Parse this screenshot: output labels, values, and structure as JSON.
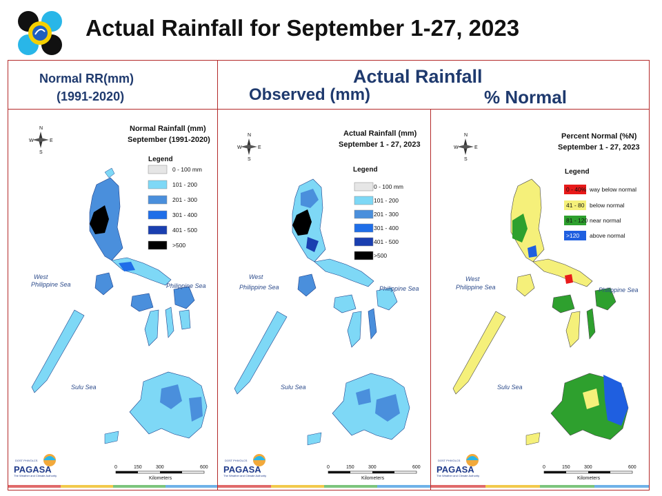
{
  "header": {
    "title": "Actual Rainfall for September 1-27, 2023",
    "normal_label_1": "Normal RR(mm)",
    "normal_label_2": "(1991-2020)",
    "actual_label": "Actual Rainfall",
    "observed_label": "Observed (mm)",
    "percent_label": "% Normal"
  },
  "colors": {
    "frame": "#b32828",
    "header_text": "#1f3a6e",
    "rain_0_100": "#e6e6e6",
    "rain_101_200": "#7ed8f6",
    "rain_201_300": "#4a8fdc",
    "rain_301_400": "#1f6ee8",
    "rain_401_500": "#1a3fb0",
    "rain_500_plus": "#000000",
    "pct_way_below": "#e81a1a",
    "pct_below": "#f5f07a",
    "pct_near": "#2ea02e",
    "pct_above": "#1f5fe0"
  },
  "panels": [
    {
      "title_1": "Normal Rainfall (mm)",
      "title_2": "September (1991-2020)",
      "legend_title": "Legend",
      "legend": [
        {
          "label": "0 - 100 mm",
          "color": "#e6e6e6"
        },
        {
          "label": "101 - 200",
          "color": "#7ed8f6"
        },
        {
          "label": "201 - 300",
          "color": "#4a8fdc"
        },
        {
          "label": "301 - 400",
          "color": "#1f6ee8"
        },
        {
          "label": "401 - 500",
          "color": "#1a3fb0"
        },
        {
          "label": ">500",
          "color": "#000000"
        }
      ]
    },
    {
      "title_1": "Actual Rainfall (mm)",
      "title_2": "September 1 - 27, 2023",
      "legend_title": "Legend",
      "legend": [
        {
          "label": "0 - 100 mm",
          "color": "#e6e6e6"
        },
        {
          "label": "101 - 200",
          "color": "#7ed8f6"
        },
        {
          "label": "201 - 300",
          "color": "#4a8fdc"
        },
        {
          "label": "301 - 400",
          "color": "#1f6ee8"
        },
        {
          "label": "401 - 500",
          "color": "#1a3fb0"
        },
        {
          "label": ">500",
          "color": "#000000"
        }
      ]
    },
    {
      "title_1": "Percent Normal (%N)",
      "title_2": "September 1 - 27, 2023",
      "legend_title": "Legend",
      "legend": [
        {
          "range": "0 - 40%",
          "label": "way below normal",
          "color": "#e81a1a"
        },
        {
          "range": "41 - 80",
          "label": "below normal",
          "color": "#f5f07a"
        },
        {
          "range": "81 - 120",
          "label": "near normal",
          "color": "#2ea02e"
        },
        {
          "range": ">120",
          "label": "above normal",
          "color": "#1f5fe0"
        }
      ]
    }
  ],
  "map_labels": {
    "west_sea_1": "West",
    "west_sea_2": "Philippine Sea",
    "east_sea": "Philippine Sea",
    "sulu_sea": "Sulu Sea",
    "compass_n": "N",
    "compass_s": "S",
    "compass_e": "E",
    "compass_w": "W"
  },
  "scale_bar": {
    "ticks": [
      "0",
      "150",
      "300",
      "600"
    ],
    "unit": "Kilometers"
  },
  "branding": {
    "agency": "PAGASA",
    "agency_small": "DOST PHIVOLCS",
    "tagline": "The Weather and Climate Authority"
  },
  "footer_colors": [
    "#e06a6a",
    "#f2c94c",
    "#7cc47c",
    "#6fb2e8"
  ]
}
